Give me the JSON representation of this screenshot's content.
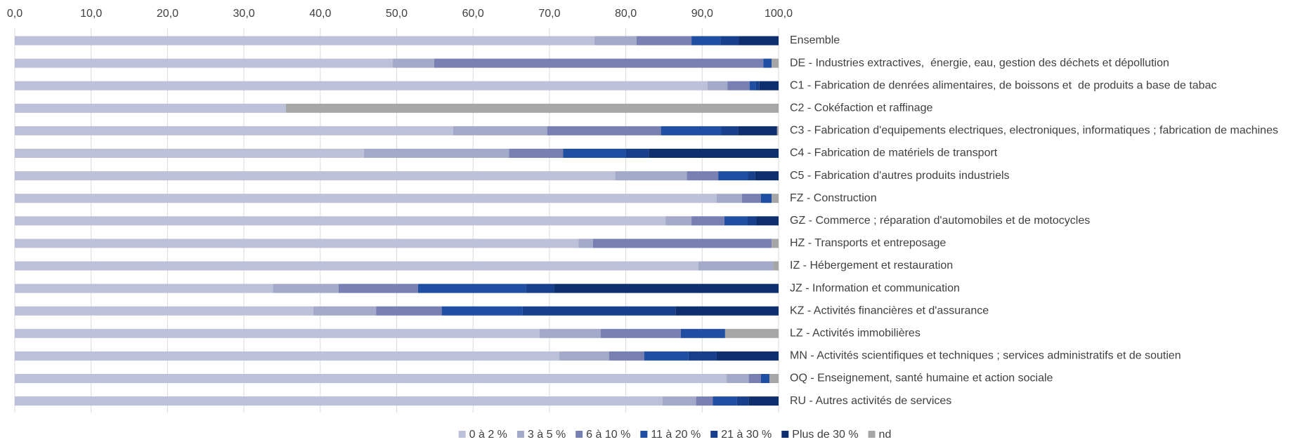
{
  "chart_data": {
    "type": "stacked_barh",
    "categories": [
      "Ensemble",
      "DE - Industries extractives,  énergie, eau, gestion des déchets et dépollution",
      "C1 - Fabrication de denrées alimentaires, de boissons et  de produits a base de tabac",
      "C2 - Cokéfaction et raffinage",
      "C3 - Fabrication d'equipements electriques, electroniques, informatiques ; fabrication de machines",
      "C4 - Fabrication de matériels de transport",
      "C5 - Fabrication d'autres produits industriels",
      "FZ - Construction",
      "GZ - Commerce ; réparation d'automobiles et de motocycles",
      "HZ - Transports et entreposage",
      "IZ - Hébergement et restauration",
      "JZ - Information et communication",
      "KZ - Activités financières et d'assurance",
      "LZ - Activités immobilières",
      "MN - Activités scientifiques et techniques ; services administratifs et de soutien",
      "OQ - Enseignement, santé humaine et action sociale",
      "RU - Autres activités de services"
    ],
    "series": [
      {
        "name": "0 à 2 %",
        "color": "#bcc0d9",
        "values": [
          75.9,
          49.5,
          90.7,
          35.5,
          57.4,
          45.7,
          78.6,
          91.9,
          85.2,
          73.8,
          89.5,
          33.8,
          39.1,
          68.7,
          71.3,
          93.2,
          84.8
        ]
      },
      {
        "name": "3 à 5 %",
        "color": "#a2a9c9",
        "values": [
          5.5,
          5.4,
          2.6,
          0,
          12.3,
          19.0,
          9.4,
          3.3,
          3.4,
          1.9,
          9.8,
          8.6,
          8.2,
          8.0,
          6.5,
          2.9,
          4.4
        ]
      },
      {
        "name": "6 à 10 %",
        "color": "#7880b3",
        "values": [
          7.2,
          43.1,
          2.9,
          0,
          14.9,
          7.1,
          4.1,
          2.5,
          4.3,
          23.4,
          0,
          10.4,
          8.6,
          10.5,
          4.6,
          1.6,
          2.2
        ]
      },
      {
        "name": "11 à 20 %",
        "color": "#1f4ea3",
        "values": [
          3.8,
          1.1,
          0.8,
          0,
          7.9,
          8.2,
          3.9,
          1.4,
          3.0,
          0,
          0,
          14.1,
          10.6,
          5.8,
          5.8,
          1.1,
          3.1
        ]
      },
      {
        "name": "21 à 30 %",
        "color": "#173f8c",
        "values": [
          2.4,
          0,
          0.5,
          0,
          2.2,
          3.0,
          0.9,
          0,
          1.2,
          0,
          0,
          3.7,
          20.0,
          0,
          3.7,
          0,
          1.6
        ]
      },
      {
        "name": "Plus de 30 %",
        "color": "#0f2e6e",
        "values": [
          5.2,
          0,
          2.5,
          0,
          5.1,
          17.0,
          3.1,
          0,
          2.9,
          0,
          0,
          29.4,
          13.5,
          0,
          8.1,
          0,
          3.9
        ]
      },
      {
        "name": "nd",
        "color": "#a6a6a6",
        "values": [
          0,
          0.9,
          0,
          64.5,
          0.2,
          0,
          0,
          0.9,
          0,
          0.9,
          0.7,
          0,
          0,
          7.0,
          0,
          1.2,
          0
        ]
      }
    ],
    "xlim": [
      0,
      100
    ],
    "xticks": [
      {
        "value": 0,
        "label": "0,0"
      },
      {
        "value": 10,
        "label": "10,0"
      },
      {
        "value": 20,
        "label": "20,0"
      },
      {
        "value": 30,
        "label": "30,0"
      },
      {
        "value": 40,
        "label": "40,0"
      },
      {
        "value": 50,
        "label": "50,0"
      },
      {
        "value": 60,
        "label": "60,0"
      },
      {
        "value": 70,
        "label": "70,0"
      },
      {
        "value": 80,
        "label": "80,0"
      },
      {
        "value": 90,
        "label": "90,0"
      },
      {
        "value": 100,
        "label": "100,0"
      }
    ],
    "grid": true,
    "legend": "bottom"
  }
}
